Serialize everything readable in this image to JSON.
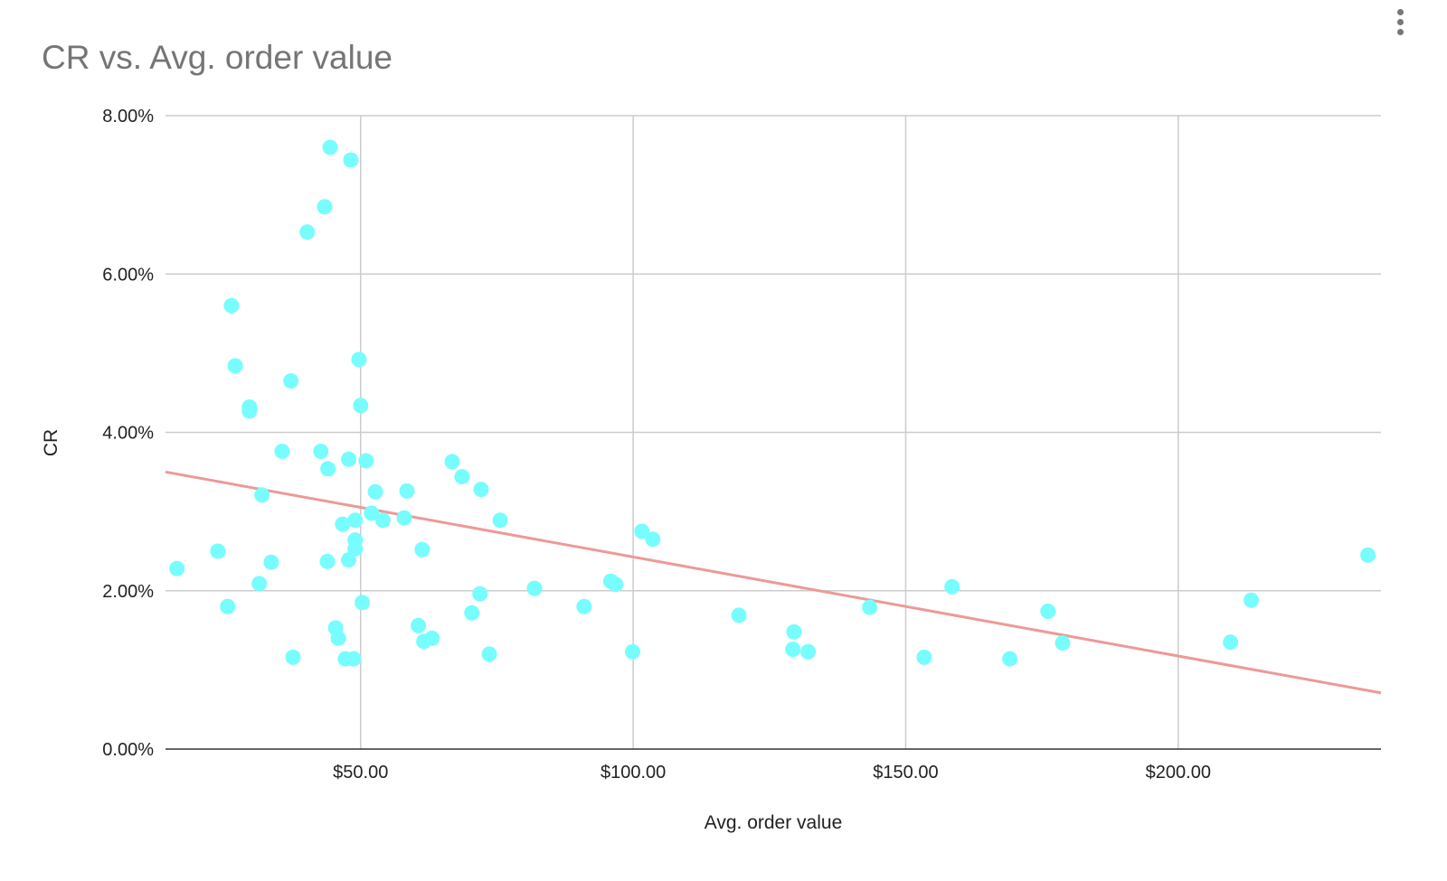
{
  "chart_data": {
    "type": "scatter",
    "title": "CR vs. Avg. order value",
    "xlabel": "Avg. order value",
    "ylabel": "CR",
    "xlim": [
      14.2,
      237.2
    ],
    "ylim": [
      0,
      8
    ],
    "xticks": [
      50,
      100,
      150,
      200
    ],
    "xtick_labels": [
      "$50.00",
      "$100.00",
      "$150.00",
      "$200.00"
    ],
    "yticks": [
      0,
      2,
      4,
      6,
      8
    ],
    "ytick_labels": [
      "0.00%",
      "2.00%",
      "4.00%",
      "6.00%",
      "8.00%"
    ],
    "grid": true,
    "point_color": "#77fdfd",
    "trend_color": "#ec9a96",
    "trendline": {
      "x": [
        14.2,
        237.2
      ],
      "y": [
        3.5,
        0.71
      ]
    },
    "points": [
      [
        16.3,
        2.28
      ],
      [
        23.8,
        2.5
      ],
      [
        25.6,
        1.8
      ],
      [
        26.3,
        5.6
      ],
      [
        27.0,
        4.84
      ],
      [
        29.6,
        4.32
      ],
      [
        29.6,
        4.27
      ],
      [
        31.4,
        2.09
      ],
      [
        31.9,
        3.21
      ],
      [
        33.6,
        2.36
      ],
      [
        35.6,
        3.76
      ],
      [
        37.2,
        4.65
      ],
      [
        37.6,
        1.16
      ],
      [
        40.2,
        6.53
      ],
      [
        42.7,
        3.76
      ],
      [
        43.4,
        6.85
      ],
      [
        43.9,
        2.37
      ],
      [
        44.0,
        3.54
      ],
      [
        44.4,
        7.6
      ],
      [
        45.4,
        1.53
      ],
      [
        45.9,
        1.4
      ],
      [
        46.7,
        2.84
      ],
      [
        47.2,
        1.14
      ],
      [
        47.8,
        3.66
      ],
      [
        47.8,
        2.39
      ],
      [
        48.2,
        7.44
      ],
      [
        48.7,
        1.14
      ],
      [
        49.0,
        2.89
      ],
      [
        49.0,
        2.64
      ],
      [
        49.0,
        2.53
      ],
      [
        49.7,
        4.92
      ],
      [
        50.0,
        4.34
      ],
      [
        50.3,
        1.85
      ],
      [
        51.0,
        3.64
      ],
      [
        52.0,
        2.98
      ],
      [
        52.7,
        3.25
      ],
      [
        54.1,
        2.89
      ],
      [
        58.0,
        2.92
      ],
      [
        58.5,
        3.26
      ],
      [
        60.6,
        1.56
      ],
      [
        61.3,
        2.52
      ],
      [
        61.6,
        1.36
      ],
      [
        63.1,
        1.4
      ],
      [
        66.8,
        3.63
      ],
      [
        68.6,
        3.44
      ],
      [
        70.4,
        1.72
      ],
      [
        71.9,
        1.96
      ],
      [
        72.1,
        3.28
      ],
      [
        73.6,
        1.2
      ],
      [
        75.6,
        2.89
      ],
      [
        81.9,
        2.03
      ],
      [
        91.0,
        1.8
      ],
      [
        95.9,
        2.12
      ],
      [
        96.8,
        2.08
      ],
      [
        99.9,
        1.23
      ],
      [
        101.6,
        2.75
      ],
      [
        103.6,
        2.65
      ],
      [
        119.4,
        1.69
      ],
      [
        129.3,
        1.26
      ],
      [
        129.5,
        1.48
      ],
      [
        132.1,
        1.23
      ],
      [
        143.4,
        1.79
      ],
      [
        153.4,
        1.16
      ],
      [
        158.5,
        2.05
      ],
      [
        169.1,
        1.14
      ],
      [
        176.1,
        1.74
      ],
      [
        178.8,
        1.34
      ],
      [
        209.6,
        1.35
      ],
      [
        213.4,
        1.88
      ],
      [
        234.8,
        2.45
      ]
    ]
  }
}
